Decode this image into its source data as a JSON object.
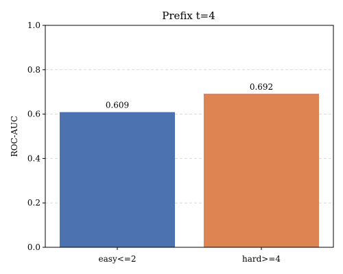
{
  "chart_data": {
    "type": "bar",
    "title": "Prefix t=4",
    "xlabel": "",
    "ylabel": "ROC-AUC",
    "ylim": [
      0,
      1.0
    ],
    "yticks": [
      "0.0",
      "0.2",
      "0.4",
      "0.6",
      "0.8",
      "1.0"
    ],
    "grid": "horizontal-dashed",
    "categories": [
      "easy<=2",
      "hard>=4"
    ],
    "values": [
      0.609,
      0.692
    ],
    "data_labels": [
      "0.609",
      "0.692"
    ],
    "colors": [
      "#4c72b0",
      "#dd8452"
    ]
  }
}
